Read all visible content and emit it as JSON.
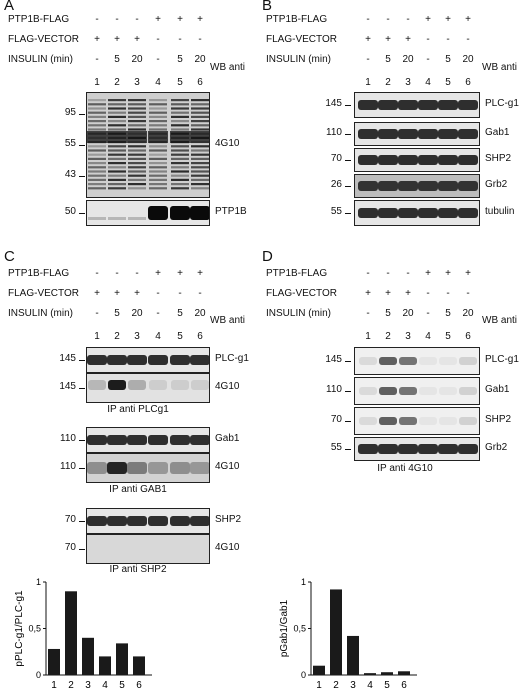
{
  "rowLabels": {
    "ptp": "PTP1B-FLAG",
    "vec": "FLAG-VECTOR",
    "ins": "INSULIN (min)"
  },
  "wbAnti": "WB anti",
  "lanes": [
    "1",
    "2",
    "3",
    "4",
    "5",
    "6"
  ],
  "signs": {
    "ptp": [
      "-",
      "-",
      "-",
      "+",
      "+",
      "+"
    ],
    "vec": [
      "+",
      "+",
      "+",
      "-",
      "-",
      "-"
    ],
    "ins": [
      "-",
      "5",
      "20",
      "-",
      "5",
      "20"
    ]
  },
  "panels": {
    "A": {
      "label": "A",
      "blots": [
        {
          "name": "4G10",
          "mw": [
            "95",
            "55",
            "43"
          ],
          "kind": "smear"
        },
        {
          "name": "PTP1B",
          "mw": [
            "50"
          ],
          "kind": "ptp1b"
        }
      ]
    },
    "B": {
      "label": "B",
      "blots": [
        {
          "name": "PLC-g1",
          "mw": [
            "145"
          ],
          "kind": "even"
        },
        {
          "name": "Gab1",
          "mw": [
            "110"
          ],
          "kind": "even"
        },
        {
          "name": "SHP2",
          "mw": [
            "70"
          ],
          "kind": "even"
        },
        {
          "name": "Grb2",
          "mw": [
            "26"
          ],
          "kind": "dark"
        },
        {
          "name": "tubulin",
          "mw": [
            "55"
          ],
          "kind": "even"
        }
      ]
    },
    "C": {
      "label": "C",
      "blots": [
        {
          "name": "PLC-g1",
          "mw": [
            "145"
          ],
          "kind": "even"
        },
        {
          "name": "4G10",
          "mw": [
            "145"
          ],
          "kind": "phosA"
        },
        {
          "name": "Gab1",
          "mw": [
            "110"
          ],
          "kind": "even"
        },
        {
          "name": "4G10",
          "mw": [
            "110"
          ],
          "kind": "phosB"
        },
        {
          "name": "SHP2",
          "mw": [
            "70"
          ],
          "kind": "even"
        },
        {
          "name": "4G10",
          "mw": [
            "70"
          ],
          "kind": "blank"
        }
      ],
      "ips": [
        "IP anti PLCg1",
        "IP anti GAB1",
        "IP anti SHP2"
      ]
    },
    "D": {
      "label": "D",
      "blots": [
        {
          "name": "PLC-g1",
          "mw": [
            "145"
          ],
          "kind": "ipD"
        },
        {
          "name": "Gab1",
          "mw": [
            "110"
          ],
          "kind": "ipD"
        },
        {
          "name": "SHP2",
          "mw": [
            "70"
          ],
          "kind": "ipD"
        },
        {
          "name": "Grb2",
          "mw": [
            "55"
          ],
          "kind": "even"
        }
      ],
      "ips": [
        "IP anti 4G10"
      ]
    }
  },
  "chart_data": [
    {
      "type": "bar",
      "categories": [
        "1",
        "2",
        "3",
        "4",
        "5",
        "6"
      ],
      "values": [
        0.28,
        0.9,
        0.4,
        0.2,
        0.34,
        0.2
      ],
      "ylabel": "pPLC-g1/PLC-g1",
      "ylim": [
        0,
        1
      ],
      "yticks": [
        "0",
        "0,5",
        "1"
      ]
    },
    {
      "type": "bar",
      "categories": [
        "1",
        "2",
        "3",
        "4",
        "5",
        "6"
      ],
      "values": [
        0.1,
        0.92,
        0.42,
        0.02,
        0.03,
        0.04
      ],
      "ylabel": "pGab1/Gab1",
      "ylim": [
        0,
        1
      ],
      "yticks": [
        "0",
        "0,5",
        "1"
      ]
    }
  ]
}
